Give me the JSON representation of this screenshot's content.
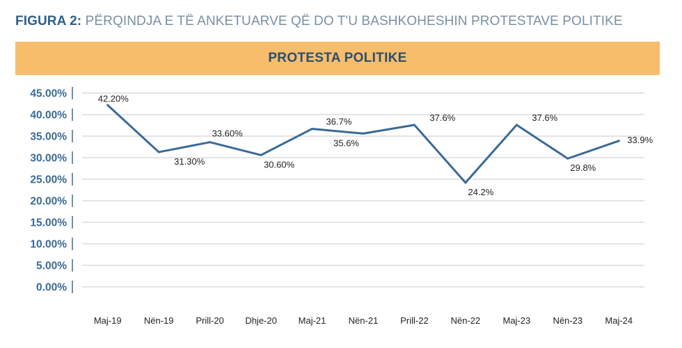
{
  "figure": {
    "label": "FIGURA 2:",
    "title": "PËRQINDJA E TË ANKETUARVE QË DO T'U BASHKOHESHIN PROTESTAVE POLITIKE"
  },
  "banner": {
    "text": "PROTESTA POLITIKE"
  },
  "colors": {
    "line": "#3a6a96",
    "grid": "#c9c9c9",
    "banner": "#f7bd6b",
    "axis_text": "#3a6a96"
  },
  "chart_data": {
    "type": "line",
    "title": "PROTESTA POLITIKE",
    "categories": [
      "Maj-19",
      "Nën-19",
      "Prill-20",
      "Dhje-20",
      "Maj-21",
      "Nën-21",
      "Prill-22",
      "Nën-22",
      "Maj-23",
      "Nën-23",
      "Maj-24"
    ],
    "series": [
      {
        "name": "Protesta politike",
        "values": [
          42.2,
          31.3,
          33.6,
          30.6,
          36.7,
          35.6,
          37.6,
          24.2,
          37.6,
          29.8,
          33.9
        ]
      }
    ],
    "data_labels": [
      "42.20%",
      "31.30%",
      "33.60%",
      "30.60%",
      "36.7%",
      "35.6%",
      "37.6%",
      "24.2%",
      "37.6%",
      "29.8%",
      "33.9%"
    ],
    "yticks": [
      {
        "value": 45,
        "label": "45.00%"
      },
      {
        "value": 40,
        "label": "40.00%"
      },
      {
        "value": 35,
        "label": "35.00%"
      },
      {
        "value": 30,
        "label": "30.00%"
      },
      {
        "value": 25,
        "label": "25.00%"
      },
      {
        "value": 20,
        "label": "20.00%"
      },
      {
        "value": 15,
        "label": "15.00%"
      },
      {
        "value": 10,
        "label": "10.00%"
      },
      {
        "value": 5,
        "label": "5.00%"
      },
      {
        "value": 0,
        "label": "0.00%"
      }
    ],
    "ylim": [
      0,
      45
    ],
    "grid": true,
    "xlabel": "",
    "ylabel": ""
  }
}
